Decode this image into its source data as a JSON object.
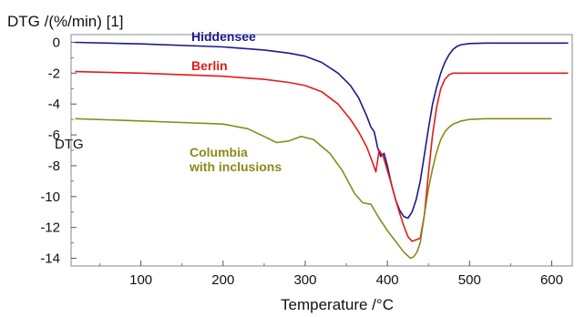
{
  "chart_data": {
    "type": "line",
    "ylabel": "DTG /(%/min) [1]",
    "xlabel": "Temperature /°C",
    "xlim": [
      15,
      625
    ],
    "ylim": [
      -14.5,
      0.5
    ],
    "x_ticks": [
      100,
      200,
      300,
      400,
      500,
      600
    ],
    "y_ticks": [
      0,
      -2,
      -4,
      -6,
      -8,
      -10,
      -12,
      -14
    ],
    "grid": false,
    "legend": "inline labels",
    "note": "DTG",
    "series": [
      {
        "name": "Hiddensee",
        "color": "#1a1a8c",
        "label_lines": [
          "Hiddensee"
        ],
        "x": [
          20,
          100,
          200,
          250,
          280,
          300,
          320,
          340,
          355,
          365,
          375,
          380,
          384,
          388,
          392,
          396,
          400,
          405,
          410,
          415,
          420,
          425,
          430,
          435,
          440,
          445,
          450,
          455,
          460,
          465,
          470,
          475,
          480,
          485,
          490,
          500,
          520,
          540,
          560,
          600,
          620
        ],
        "y": [
          0,
          -0.1,
          -0.3,
          -0.5,
          -0.7,
          -0.9,
          -1.3,
          -2.0,
          -2.8,
          -3.6,
          -4.8,
          -5.5,
          -5.8,
          -6.8,
          -7.4,
          -7.2,
          -8.0,
          -9.2,
          -10.2,
          -10.9,
          -11.3,
          -11.4,
          -11.0,
          -10.2,
          -9.0,
          -7.3,
          -5.6,
          -4.0,
          -2.9,
          -2.0,
          -1.3,
          -0.8,
          -0.45,
          -0.25,
          -0.15,
          -0.08,
          -0.05,
          -0.05,
          -0.05,
          -0.05,
          -0.05
        ]
      },
      {
        "name": "Berlin",
        "color": "#e51a1a",
        "label_lines": [
          "Berlin"
        ],
        "x": [
          20,
          100,
          200,
          250,
          280,
          300,
          320,
          340,
          355,
          365,
          375,
          382,
          386,
          390,
          395,
          400,
          405,
          410,
          415,
          420,
          425,
          430,
          435,
          440,
          445,
          450,
          455,
          460,
          465,
          470,
          475,
          480,
          485,
          490,
          500,
          520,
          540,
          560,
          600,
          620
        ],
        "y": [
          -1.9,
          -2.0,
          -2.2,
          -2.4,
          -2.6,
          -2.8,
          -3.2,
          -4.0,
          -5.0,
          -5.8,
          -6.8,
          -7.8,
          -8.4,
          -7.0,
          -7.4,
          -8.3,
          -9.2,
          -10.2,
          -11.1,
          -11.9,
          -12.6,
          -12.9,
          -12.8,
          -12.7,
          -11.2,
          -8.5,
          -6.0,
          -4.2,
          -3.0,
          -2.4,
          -2.1,
          -2.0,
          -2.0,
          -2.0,
          -2.0,
          -2.0,
          -2.0,
          -2.0,
          -2.0,
          -2.0
        ]
      },
      {
        "name": "Columbia with inclusions",
        "color": "#8a8a1a",
        "label_lines": [
          "Columbia",
          "with inclusions"
        ],
        "x": [
          20,
          100,
          150,
          200,
          230,
          250,
          265,
          280,
          295,
          310,
          330,
          345,
          360,
          370,
          380,
          390,
          400,
          410,
          420,
          428,
          432,
          436,
          440,
          445,
          450,
          455,
          460,
          465,
          470,
          475,
          480,
          490,
          500,
          520,
          560,
          600
        ],
        "y": [
          -4.95,
          -5.1,
          -5.2,
          -5.3,
          -5.6,
          -6.1,
          -6.5,
          -6.4,
          -6.1,
          -6.3,
          -7.2,
          -8.3,
          -9.8,
          -10.4,
          -10.5,
          -11.4,
          -12.2,
          -12.9,
          -13.6,
          -14.0,
          -13.9,
          -13.6,
          -13.0,
          -11.2,
          -9.5,
          -8.2,
          -7.1,
          -6.3,
          -5.8,
          -5.5,
          -5.3,
          -5.1,
          -5.0,
          -4.95,
          -4.95,
          -4.95
        ]
      }
    ]
  }
}
